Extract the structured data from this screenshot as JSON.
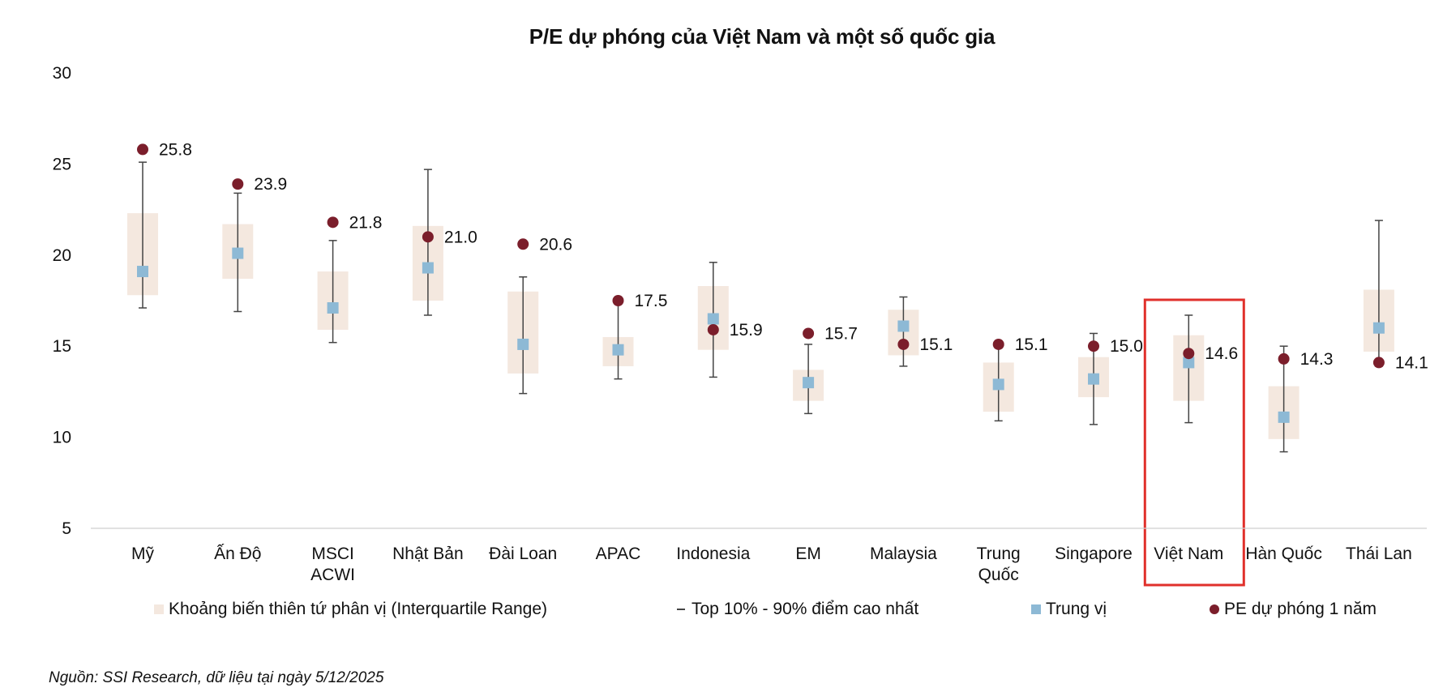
{
  "chart_data": {
    "type": "box-range",
    "title": "P/E dự phóng của Việt Nam và một số quốc gia",
    "ylim": [
      5,
      30
    ],
    "yticks": [
      "30",
      "25",
      "20",
      "15",
      "10",
      "5"
    ],
    "categories": [
      [
        "Mỹ"
      ],
      [
        "Ấn Độ"
      ],
      [
        "MSCI",
        "ACWI"
      ],
      [
        "Nhật Bản"
      ],
      [
        "Đài Loan"
      ],
      [
        "APAC"
      ],
      [
        "Indonesia"
      ],
      [
        "EM"
      ],
      [
        "Malaysia"
      ],
      [
        "Trung",
        "Quốc"
      ],
      [
        "Singapore"
      ],
      [
        "Việt Nam"
      ],
      [
        "Hàn Quốc"
      ],
      [
        "Thái Lan"
      ]
    ],
    "iqr_low": [
      17.8,
      18.7,
      15.9,
      17.5,
      13.5,
      13.9,
      14.8,
      12.0,
      14.5,
      11.4,
      12.2,
      12.0,
      9.9,
      14.7
    ],
    "iqr_high": [
      22.3,
      21.7,
      19.1,
      21.6,
      18.0,
      15.5,
      18.3,
      13.7,
      17.0,
      14.1,
      14.4,
      15.6,
      12.8,
      18.1
    ],
    "p10": [
      17.1,
      16.9,
      15.2,
      16.7,
      12.4,
      13.2,
      13.3,
      11.3,
      13.9,
      10.9,
      10.7,
      10.8,
      9.2,
      13.9
    ],
    "p90": [
      25.1,
      23.4,
      20.8,
      24.7,
      18.8,
      17.4,
      19.6,
      15.1,
      17.7,
      14.9,
      15.7,
      16.7,
      15.0,
      21.9
    ],
    "median": [
      19.1,
      20.1,
      17.1,
      19.3,
      15.1,
      14.8,
      16.5,
      13.0,
      16.1,
      12.9,
      13.2,
      14.1,
      11.1,
      16.0
    ],
    "pe_forward": [
      25.8,
      23.9,
      21.8,
      21.0,
      20.6,
      17.5,
      15.9,
      15.7,
      15.1,
      15.1,
      15.0,
      14.6,
      14.3,
      14.1
    ],
    "pe_labels": [
      "25.8",
      "23.9",
      "21.8",
      "21.0",
      "20.6",
      "17.5",
      "15.9",
      "15.7",
      "15.1",
      "15.1",
      "15.0",
      "14.6",
      "14.3",
      "14.1"
    ],
    "highlight_category": "Việt Nam",
    "legend_position": "bottom",
    "colors": {
      "iqr": "#f4e8df",
      "whisker": "#444444",
      "median": "#8db9d5",
      "pe": "#7b1e2b",
      "highlight": "#e0302b",
      "axis": "#cfcfcf"
    }
  },
  "legend": {
    "iqr": "Khoảng biến thiên tứ phân vị (Interquartile Range)",
    "range": "Top 10% - 90% điểm cao nhất",
    "median": "Trung vị",
    "pe": "PE dự phóng 1 năm"
  },
  "source": "Nguồn: SSI Research, dữ liệu tại ngày 5/12/2025"
}
